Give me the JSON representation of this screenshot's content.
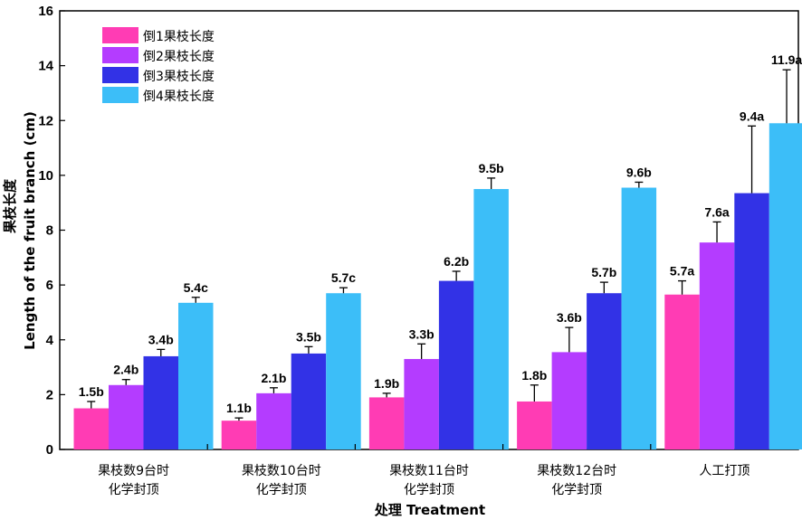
{
  "chart_data": {
    "type": "bar",
    "title": "",
    "xlabel": "处理 Treatment",
    "ylabel_cn": "果枝长度",
    "ylabel_en": "Length of the fruit branch (cm)",
    "ylim": [
      0,
      16
    ],
    "yticks": [
      0,
      2,
      4,
      6,
      8,
      10,
      12,
      14,
      16
    ],
    "grid": false,
    "legend_position": "top-left",
    "categories": [
      [
        "果枝数9台时",
        "化学封顶"
      ],
      [
        "果枝数10台时",
        "化学封顶"
      ],
      [
        "果枝数11台时",
        "化学封顶"
      ],
      [
        "果枝数12台时",
        "化学封顶"
      ],
      [
        "人工打顶"
      ]
    ],
    "series": [
      {
        "name": "倒1果枝长度",
        "color": "#ff3cb4",
        "values": [
          1.5,
          1.05,
          1.9,
          1.75,
          5.65
        ],
        "errors": [
          0.25,
          0.1,
          0.15,
          0.6,
          0.5
        ],
        "labels": [
          "1.5b",
          "1.1b",
          "1.9b",
          "1.8b",
          "5.7a"
        ]
      },
      {
        "name": "倒2果枝长度",
        "color": "#b43cff",
        "values": [
          2.35,
          2.05,
          3.3,
          3.55,
          7.55
        ],
        "errors": [
          0.2,
          0.2,
          0.55,
          0.9,
          0.75
        ],
        "labels": [
          "2.4b",
          "2.1b",
          "3.3b",
          "3.6b",
          "7.6a"
        ]
      },
      {
        "name": "倒3果枝长度",
        "color": "#3232e6",
        "values": [
          3.4,
          3.5,
          6.15,
          5.7,
          9.35
        ],
        "errors": [
          0.25,
          0.25,
          0.35,
          0.4,
          2.45
        ],
        "labels": [
          "3.4b",
          "3.5b",
          "6.2b",
          "5.7b",
          "9.4a"
        ]
      },
      {
        "name": "倒4果枝长度",
        "color": "#3cbef8",
        "values": [
          5.35,
          5.7,
          9.5,
          9.55,
          11.9
        ],
        "errors": [
          0.2,
          0.2,
          0.4,
          0.2,
          1.95
        ],
        "labels": [
          "5.4c",
          "5.7c",
          "9.5b",
          "9.6b",
          "11.9a"
        ]
      }
    ]
  }
}
